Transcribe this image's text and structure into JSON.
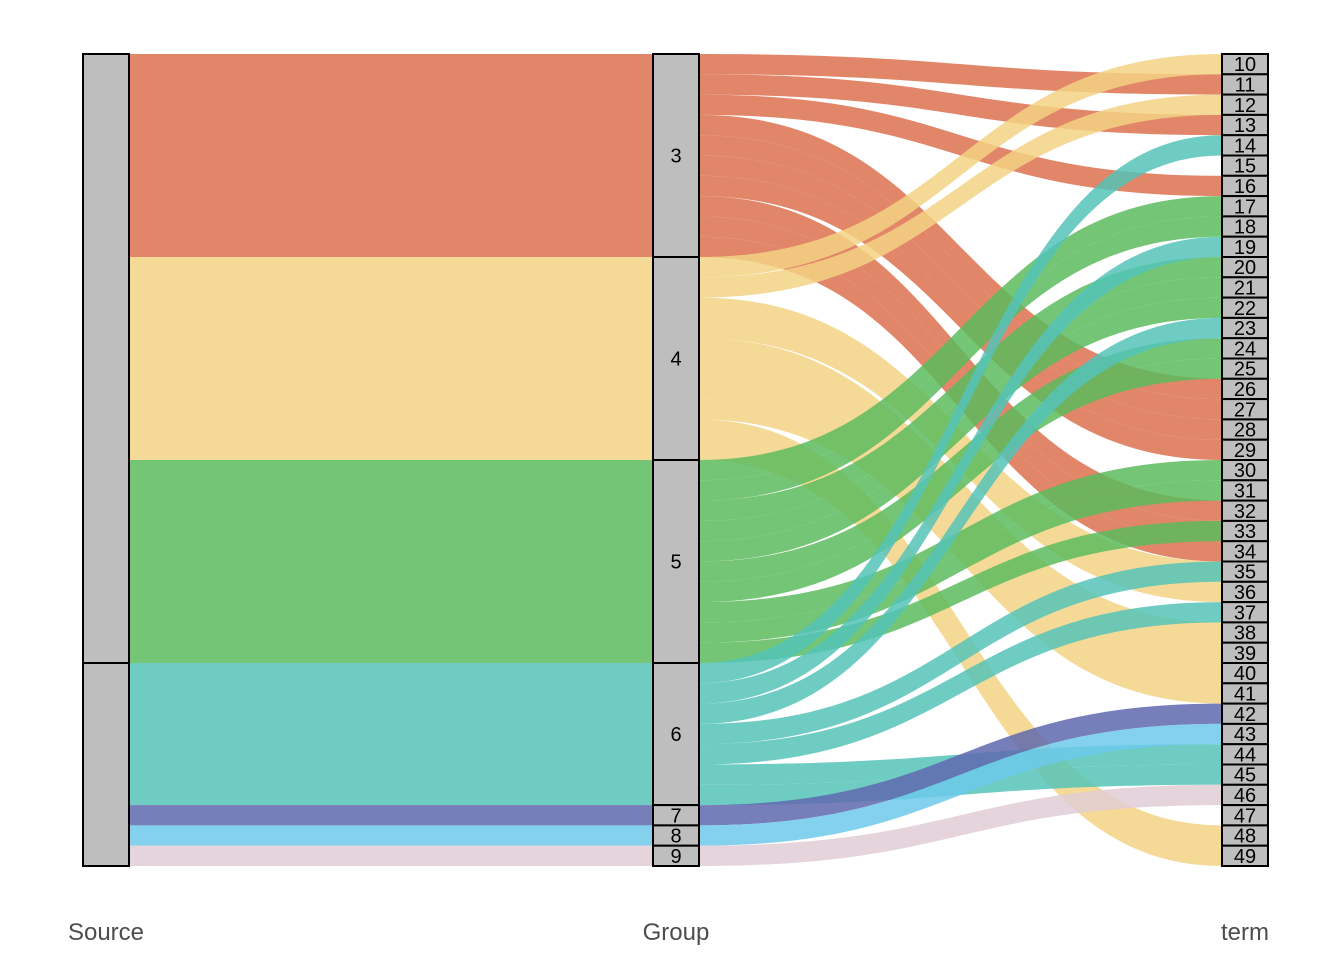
{
  "chart_data": {
    "type": "alluvial",
    "axes": [
      "Source",
      "Group",
      "term"
    ],
    "colors": {
      "3": "#DC714F",
      "4": "#F3D284",
      "5": "#5CBB5E",
      "6": "#55C3B9",
      "7": "#5F68AF",
      "8": "#6DC9EA",
      "9": "#E0CDD5"
    },
    "groups": [
      {
        "name": "3",
        "value": 10
      },
      {
        "name": "4",
        "value": 10
      },
      {
        "name": "5",
        "value": 10
      },
      {
        "name": "6",
        "value": 7
      },
      {
        "name": "7",
        "value": 1
      },
      {
        "name": "8",
        "value": 1
      },
      {
        "name": "9",
        "value": 1
      }
    ],
    "source_strata": [
      "",
      ""
    ],
    "source_values": [
      30,
      10
    ],
    "terms": [
      "10",
      "11",
      "12",
      "13",
      "14",
      "15",
      "16",
      "17",
      "18",
      "19",
      "20",
      "21",
      "22",
      "23",
      "24",
      "25",
      "26",
      "27",
      "28",
      "29",
      "30",
      "31",
      "32",
      "33",
      "34",
      "35",
      "36",
      "37",
      "38",
      "39",
      "40",
      "41",
      "42",
      "43",
      "44",
      "45",
      "46",
      "47",
      "48",
      "49"
    ],
    "flows": [
      {
        "group": "3",
        "term": "11"
      },
      {
        "group": "3",
        "term": "13"
      },
      {
        "group": "3",
        "term": "16"
      },
      {
        "group": "3",
        "term": "26"
      },
      {
        "group": "3",
        "term": "27"
      },
      {
        "group": "3",
        "term": "28"
      },
      {
        "group": "3",
        "term": "29"
      },
      {
        "group": "3",
        "term": "32"
      },
      {
        "group": "3",
        "term": "33"
      },
      {
        "group": "3",
        "term": "34"
      },
      {
        "group": "4",
        "term": "10"
      },
      {
        "group": "4",
        "term": "12"
      },
      {
        "group": "4",
        "term": "35"
      },
      {
        "group": "4",
        "term": "36"
      },
      {
        "group": "4",
        "term": "38"
      },
      {
        "group": "4",
        "term": "39"
      },
      {
        "group": "4",
        "term": "40"
      },
      {
        "group": "4",
        "term": "41"
      },
      {
        "group": "4",
        "term": "48"
      },
      {
        "group": "4",
        "term": "49"
      },
      {
        "group": "5",
        "term": "17"
      },
      {
        "group": "5",
        "term": "18"
      },
      {
        "group": "5",
        "term": "20"
      },
      {
        "group": "5",
        "term": "21"
      },
      {
        "group": "5",
        "term": "22"
      },
      {
        "group": "5",
        "term": "24"
      },
      {
        "group": "5",
        "term": "25"
      },
      {
        "group": "5",
        "term": "30"
      },
      {
        "group": "5",
        "term": "31"
      },
      {
        "group": "5",
        "term": "33"
      },
      {
        "group": "6",
        "term": "14"
      },
      {
        "group": "6",
        "term": "19"
      },
      {
        "group": "6",
        "term": "23"
      },
      {
        "group": "6",
        "term": "35"
      },
      {
        "group": "6",
        "term": "37"
      },
      {
        "group": "6",
        "term": "44"
      },
      {
        "group": "6",
        "term": "45"
      },
      {
        "group": "7",
        "term": "42"
      },
      {
        "group": "8",
        "term": "43"
      },
      {
        "group": "9",
        "term": "46"
      }
    ]
  }
}
